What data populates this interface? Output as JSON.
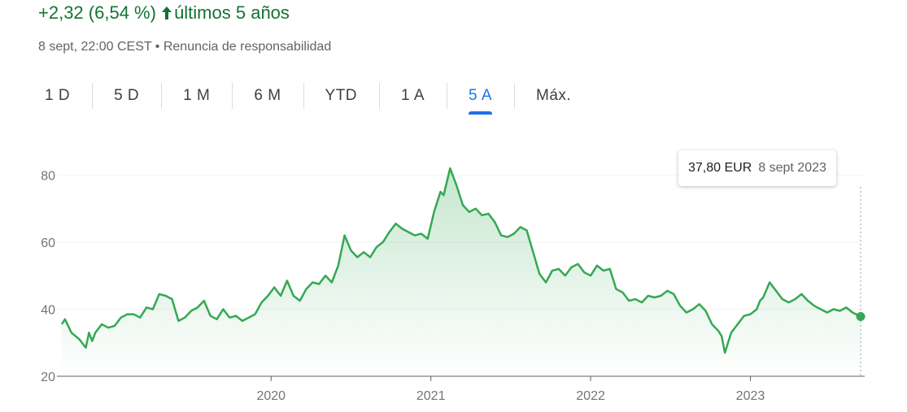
{
  "header": {
    "change_text": "+2,32 (6,54 %)",
    "period_text": "últimos 5 años",
    "timestamp": "8 sept, 22:00 CEST",
    "separator": " • ",
    "disclaimer": "Renuncia de responsabilidad"
  },
  "tabs": [
    {
      "label": "1 D",
      "active": false
    },
    {
      "label": "5 D",
      "active": false
    },
    {
      "label": "1 M",
      "active": false
    },
    {
      "label": "6 M",
      "active": false
    },
    {
      "label": "YTD",
      "active": false
    },
    {
      "label": "1 A",
      "active": false
    },
    {
      "label": "5 A",
      "active": true
    },
    {
      "label": "Máx.",
      "active": false
    }
  ],
  "tooltip": {
    "price": "37,80 EUR",
    "date": "8 sept 2023"
  },
  "colors": {
    "positive": "#137333",
    "line": "#34a853",
    "accent": "#1a73e8",
    "text_muted": "#70757a"
  },
  "chart_data": {
    "type": "area",
    "title": "",
    "xlabel": "",
    "ylabel": "",
    "xlim": [
      2018.69,
      2023.69
    ],
    "ylim": [
      20,
      85
    ],
    "yticks": [
      20,
      40,
      60,
      80
    ],
    "ytick_labels": [
      "20",
      "40",
      "60",
      "80"
    ],
    "xticks": [
      2020,
      2021,
      2022,
      2023
    ],
    "xtick_labels": [
      "2020",
      "2021",
      "2022",
      "2023"
    ],
    "grid": "horizontal",
    "legend": "none",
    "series": [
      {
        "x": [
          2018.69,
          2018.71,
          2018.75,
          2018.8,
          2018.84,
          2018.86,
          2018.88,
          2018.9,
          2018.94,
          2018.98,
          2019.02,
          2019.06,
          2019.1,
          2019.14,
          2019.18,
          2019.22,
          2019.26,
          2019.3,
          2019.34,
          2019.38,
          2019.42,
          2019.46,
          2019.5,
          2019.54,
          2019.58,
          2019.62,
          2019.66,
          2019.7,
          2019.74,
          2019.78,
          2019.82,
          2019.86,
          2019.9,
          2019.94,
          2019.98,
          2020.02,
          2020.06,
          2020.1,
          2020.14,
          2020.18,
          2020.22,
          2020.26,
          2020.3,
          2020.34,
          2020.38,
          2020.42,
          2020.46,
          2020.5,
          2020.54,
          2020.58,
          2020.62,
          2020.66,
          2020.7,
          2020.74,
          2020.78,
          2020.82,
          2020.86,
          2020.9,
          2020.94,
          2020.98,
          2021.02,
          2021.06,
          2021.08,
          2021.12,
          2021.16,
          2021.2,
          2021.24,
          2021.28,
          2021.32,
          2021.36,
          2021.4,
          2021.44,
          2021.48,
          2021.52,
          2021.56,
          2021.6,
          2021.64,
          2021.68,
          2021.72,
          2021.76,
          2021.8,
          2021.84,
          2021.88,
          2021.92,
          2021.96,
          2022.0,
          2022.04,
          2022.08,
          2022.12,
          2022.16,
          2022.2,
          2022.24,
          2022.28,
          2022.32,
          2022.36,
          2022.4,
          2022.44,
          2022.48,
          2022.52,
          2022.56,
          2022.6,
          2022.64,
          2022.68,
          2022.72,
          2022.76,
          2022.8,
          2022.82,
          2022.84,
          2022.88,
          2022.92,
          2022.96,
          2023.0,
          2023.04,
          2023.06,
          2023.08,
          2023.12,
          2023.16,
          2023.2,
          2023.24,
          2023.28,
          2023.32,
          2023.36,
          2023.4,
          2023.44,
          2023.48,
          2023.52,
          2023.56,
          2023.6,
          2023.64,
          2023.69
        ],
        "y": [
          35.5,
          37.0,
          33.0,
          31.0,
          28.5,
          33.0,
          30.5,
          33.0,
          35.5,
          34.5,
          35.0,
          37.5,
          38.5,
          38.5,
          37.5,
          40.5,
          40.0,
          44.5,
          44.0,
          43.0,
          36.5,
          37.5,
          39.5,
          40.5,
          42.5,
          38.0,
          37.0,
          40.0,
          37.5,
          38.0,
          36.5,
          37.5,
          38.5,
          42.0,
          44.0,
          46.5,
          44.0,
          48.5,
          44.0,
          42.5,
          46.0,
          48.0,
          47.5,
          50.0,
          48.0,
          53.0,
          62.0,
          57.5,
          55.5,
          57.0,
          55.5,
          58.5,
          60.0,
          63.0,
          65.5,
          64.0,
          63.0,
          62.0,
          62.5,
          61.0,
          69.0,
          75.0,
          74.0,
          82.0,
          77.0,
          71.0,
          69.0,
          70.0,
          68.0,
          68.5,
          66.0,
          62.0,
          61.5,
          62.5,
          64.5,
          63.5,
          57.0,
          50.5,
          48.0,
          51.5,
          52.0,
          50.0,
          52.5,
          53.5,
          51.0,
          50.0,
          53.0,
          51.5,
          52.0,
          46.0,
          45.0,
          42.5,
          43.0,
          42.0,
          44.0,
          43.5,
          44.0,
          45.5,
          44.5,
          41.0,
          39.0,
          40.0,
          41.5,
          39.5,
          35.5,
          33.5,
          32.0,
          27.0,
          33.0,
          35.5,
          38.0,
          38.5,
          40.0,
          42.5,
          43.5,
          48.0,
          45.5,
          43.0,
          42.0,
          43.0,
          44.5,
          42.5,
          41.0,
          40.0,
          39.0,
          40.0,
          39.5,
          40.5,
          39.0,
          37.8
        ]
      }
    ]
  }
}
